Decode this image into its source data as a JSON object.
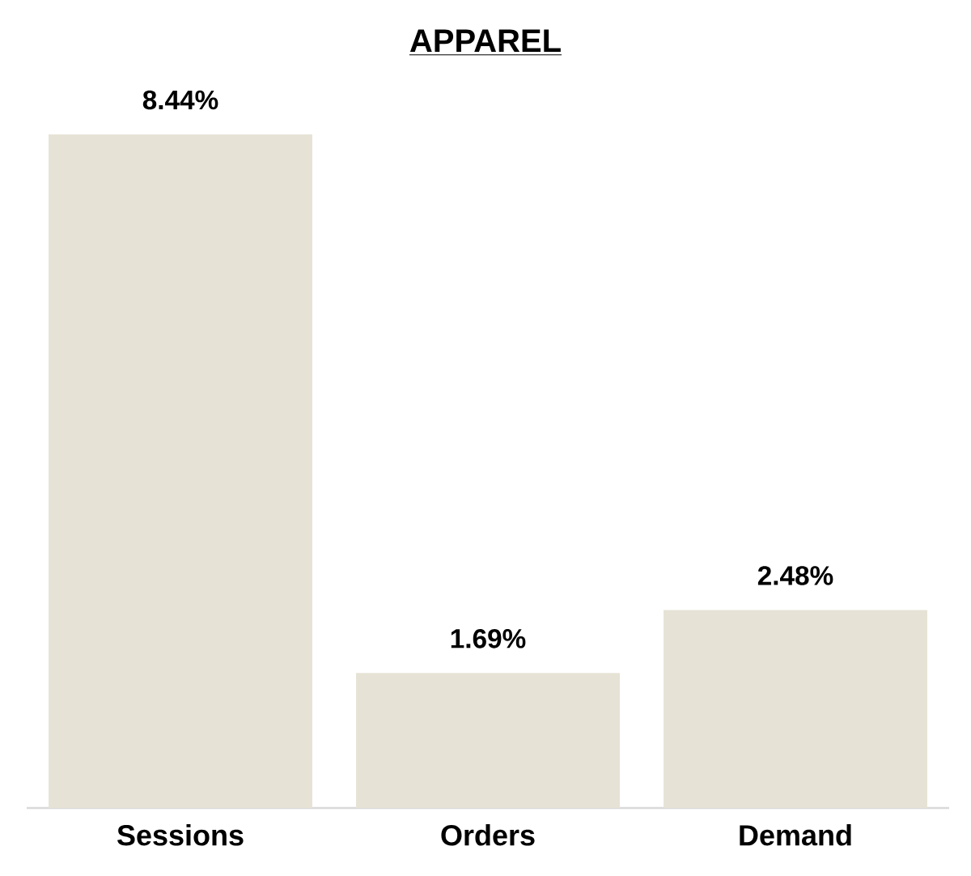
{
  "chart_data": {
    "type": "bar",
    "title": "APPAREL",
    "categories": [
      "Sessions",
      "Orders",
      "Demand"
    ],
    "values": [
      8.44,
      1.69,
      2.48
    ],
    "value_labels": [
      "8.44%",
      "1.69%",
      "2.48%"
    ],
    "color": "#e6e3d6"
  }
}
